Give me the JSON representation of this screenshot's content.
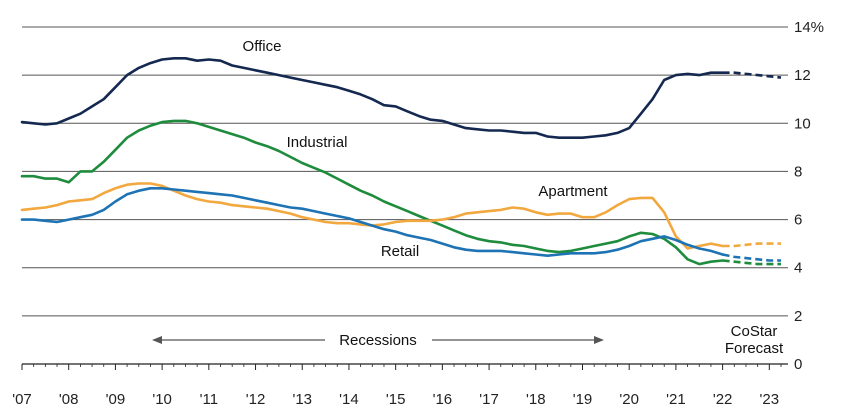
{
  "chart_data": {
    "type": "line",
    "title": "",
    "xlabel": "",
    "ylabel": "",
    "x_tick_labels": [
      "'07",
      "'08",
      "'09",
      "'10",
      "'11",
      "'12",
      "'13",
      "'14",
      "'15",
      "'16",
      "'17",
      "'18",
      "'19",
      "'20",
      "'21",
      "'22",
      "'23"
    ],
    "y_ticks": [
      0,
      2,
      4,
      6,
      8,
      10,
      12,
      14
    ],
    "y_tick_labels": [
      "0",
      "2",
      "4",
      "6",
      "8",
      "10",
      "12",
      "14%"
    ],
    "xlim": [
      2007,
      2023.4
    ],
    "ylim": [
      0,
      14
    ],
    "grid": true,
    "forecast_start": 2022.0,
    "annotations": {
      "recessions": "Recessions",
      "forecast_line1": "CoStar",
      "forecast_line2": "Forecast"
    },
    "series": [
      {
        "name": "Office",
        "color": "#142850",
        "x": [
          2007,
          2007.25,
          2007.5,
          2007.75,
          2008,
          2008.25,
          2008.5,
          2008.75,
          2009,
          2009.25,
          2009.5,
          2009.75,
          2010,
          2010.25,
          2010.5,
          2010.75,
          2011,
          2011.25,
          2011.5,
          2011.75,
          2012,
          2012.25,
          2012.5,
          2012.75,
          2013,
          2013.25,
          2013.5,
          2013.75,
          2014,
          2014.25,
          2014.5,
          2014.75,
          2015,
          2015.25,
          2015.5,
          2015.75,
          2016,
          2016.25,
          2016.5,
          2016.75,
          2017,
          2017.25,
          2017.5,
          2017.75,
          2018,
          2018.25,
          2018.5,
          2018.75,
          2019,
          2019.25,
          2019.5,
          2019.75,
          2020,
          2020.25,
          2020.5,
          2020.75,
          2021,
          2021.25,
          2021.5,
          2021.75,
          2022,
          2022.25,
          2022.5,
          2022.75,
          2023,
          2023.25
        ],
        "y": [
          10.05,
          10.0,
          9.95,
          10.0,
          10.2,
          10.4,
          10.7,
          11.0,
          11.5,
          12.0,
          12.3,
          12.5,
          12.65,
          12.7,
          12.7,
          12.6,
          12.65,
          12.6,
          12.4,
          12.3,
          12.2,
          12.1,
          12.0,
          11.9,
          11.8,
          11.7,
          11.6,
          11.5,
          11.35,
          11.2,
          11.0,
          10.75,
          10.7,
          10.5,
          10.3,
          10.15,
          10.1,
          9.95,
          9.8,
          9.75,
          9.7,
          9.7,
          9.65,
          9.6,
          9.6,
          9.45,
          9.4,
          9.4,
          9.4,
          9.45,
          9.5,
          9.6,
          9.8,
          10.4,
          11.0,
          11.8,
          12.0,
          12.05,
          12.0,
          12.1,
          12.1,
          12.1,
          12.05,
          12.0,
          11.95,
          11.9
        ]
      },
      {
        "name": "Industrial",
        "color": "#1e8c3c",
        "x": [
          2007,
          2007.25,
          2007.5,
          2007.75,
          2008,
          2008.25,
          2008.5,
          2008.75,
          2009,
          2009.25,
          2009.5,
          2009.75,
          2010,
          2010.25,
          2010.5,
          2010.75,
          2011,
          2011.25,
          2011.5,
          2011.75,
          2012,
          2012.25,
          2012.5,
          2012.75,
          2013,
          2013.25,
          2013.5,
          2013.75,
          2014,
          2014.25,
          2014.5,
          2014.75,
          2015,
          2015.25,
          2015.5,
          2015.75,
          2016,
          2016.25,
          2016.5,
          2016.75,
          2017,
          2017.25,
          2017.5,
          2017.75,
          2018,
          2018.25,
          2018.5,
          2018.75,
          2019,
          2019.25,
          2019.5,
          2019.75,
          2020,
          2020.25,
          2020.5,
          2020.75,
          2021,
          2021.25,
          2021.5,
          2021.75,
          2022,
          2022.25,
          2022.5,
          2022.75,
          2023,
          2023.25
        ],
        "y": [
          7.8,
          7.8,
          7.7,
          7.7,
          7.55,
          8.0,
          8.0,
          8.4,
          8.9,
          9.4,
          9.7,
          9.9,
          10.05,
          10.1,
          10.1,
          10.0,
          9.85,
          9.7,
          9.55,
          9.4,
          9.2,
          9.05,
          8.85,
          8.6,
          8.35,
          8.15,
          7.95,
          7.7,
          7.45,
          7.2,
          7.0,
          6.75,
          6.55,
          6.35,
          6.15,
          5.95,
          5.75,
          5.55,
          5.35,
          5.2,
          5.1,
          5.05,
          4.95,
          4.9,
          4.8,
          4.7,
          4.65,
          4.7,
          4.8,
          4.9,
          5.0,
          5.1,
          5.3,
          5.45,
          5.4,
          5.2,
          4.85,
          4.35,
          4.15,
          4.25,
          4.3,
          4.25,
          4.2,
          4.15,
          4.15,
          4.15
        ]
      },
      {
        "name": "Apartment",
        "color": "#f2a83e",
        "x": [
          2007,
          2007.25,
          2007.5,
          2007.75,
          2008,
          2008.25,
          2008.5,
          2008.75,
          2009,
          2009.25,
          2009.5,
          2009.75,
          2010,
          2010.25,
          2010.5,
          2010.75,
          2011,
          2011.25,
          2011.5,
          2011.75,
          2012,
          2012.25,
          2012.5,
          2012.75,
          2013,
          2013.25,
          2013.5,
          2013.75,
          2014,
          2014.25,
          2014.5,
          2014.75,
          2015,
          2015.25,
          2015.5,
          2015.75,
          2016,
          2016.25,
          2016.5,
          2016.75,
          2017,
          2017.25,
          2017.5,
          2017.75,
          2018,
          2018.25,
          2018.5,
          2018.75,
          2019,
          2019.25,
          2019.5,
          2019.75,
          2020,
          2020.25,
          2020.5,
          2020.75,
          2021,
          2021.25,
          2021.5,
          2021.75,
          2022,
          2022.25,
          2022.5,
          2022.75,
          2023,
          2023.25
        ],
        "y": [
          6.4,
          6.45,
          6.5,
          6.6,
          6.75,
          6.8,
          6.85,
          7.1,
          7.3,
          7.45,
          7.5,
          7.5,
          7.4,
          7.2,
          7.0,
          6.85,
          6.75,
          6.7,
          6.6,
          6.55,
          6.5,
          6.45,
          6.35,
          6.25,
          6.1,
          6.0,
          5.9,
          5.85,
          5.85,
          5.8,
          5.75,
          5.8,
          5.9,
          5.95,
          5.95,
          5.95,
          6.0,
          6.1,
          6.25,
          6.3,
          6.35,
          6.4,
          6.5,
          6.45,
          6.3,
          6.2,
          6.25,
          6.25,
          6.1,
          6.1,
          6.3,
          6.6,
          6.85,
          6.9,
          6.9,
          6.3,
          5.3,
          4.8,
          4.9,
          5.0,
          4.9,
          4.9,
          4.95,
          5.0,
          5.0,
          5.0
        ]
      },
      {
        "name": "Retail",
        "color": "#1e73b4",
        "x": [
          2007,
          2007.25,
          2007.5,
          2007.75,
          2008,
          2008.25,
          2008.5,
          2008.75,
          2009,
          2009.25,
          2009.5,
          2009.75,
          2010,
          2010.25,
          2010.5,
          2010.75,
          2011,
          2011.25,
          2011.5,
          2011.75,
          2012,
          2012.25,
          2012.5,
          2012.75,
          2013,
          2013.25,
          2013.5,
          2013.75,
          2014,
          2014.25,
          2014.5,
          2014.75,
          2015,
          2015.25,
          2015.5,
          2015.75,
          2016,
          2016.25,
          2016.5,
          2016.75,
          2017,
          2017.25,
          2017.5,
          2017.75,
          2018,
          2018.25,
          2018.5,
          2018.75,
          2019,
          2019.25,
          2019.5,
          2019.75,
          2020,
          2020.25,
          2020.5,
          2020.75,
          2021,
          2021.25,
          2021.5,
          2021.75,
          2022,
          2022.25,
          2022.5,
          2022.75,
          2023,
          2023.25
        ],
        "y": [
          6.0,
          6.0,
          5.95,
          5.9,
          6.0,
          6.1,
          6.2,
          6.4,
          6.75,
          7.05,
          7.2,
          7.3,
          7.3,
          7.25,
          7.2,
          7.15,
          7.1,
          7.05,
          7.0,
          6.9,
          6.8,
          6.7,
          6.6,
          6.5,
          6.45,
          6.35,
          6.25,
          6.15,
          6.05,
          5.9,
          5.75,
          5.6,
          5.5,
          5.35,
          5.25,
          5.15,
          5.0,
          4.85,
          4.75,
          4.7,
          4.7,
          4.7,
          4.65,
          4.6,
          4.55,
          4.5,
          4.55,
          4.6,
          4.6,
          4.6,
          4.65,
          4.75,
          4.9,
          5.1,
          5.2,
          5.3,
          5.15,
          4.95,
          4.8,
          4.7,
          4.55,
          4.45,
          4.4,
          4.35,
          4.3,
          4.3
        ]
      }
    ]
  },
  "series_labels": {
    "office": "Office",
    "industrial": "Industrial",
    "apartment": "Apartment",
    "retail": "Retail"
  }
}
